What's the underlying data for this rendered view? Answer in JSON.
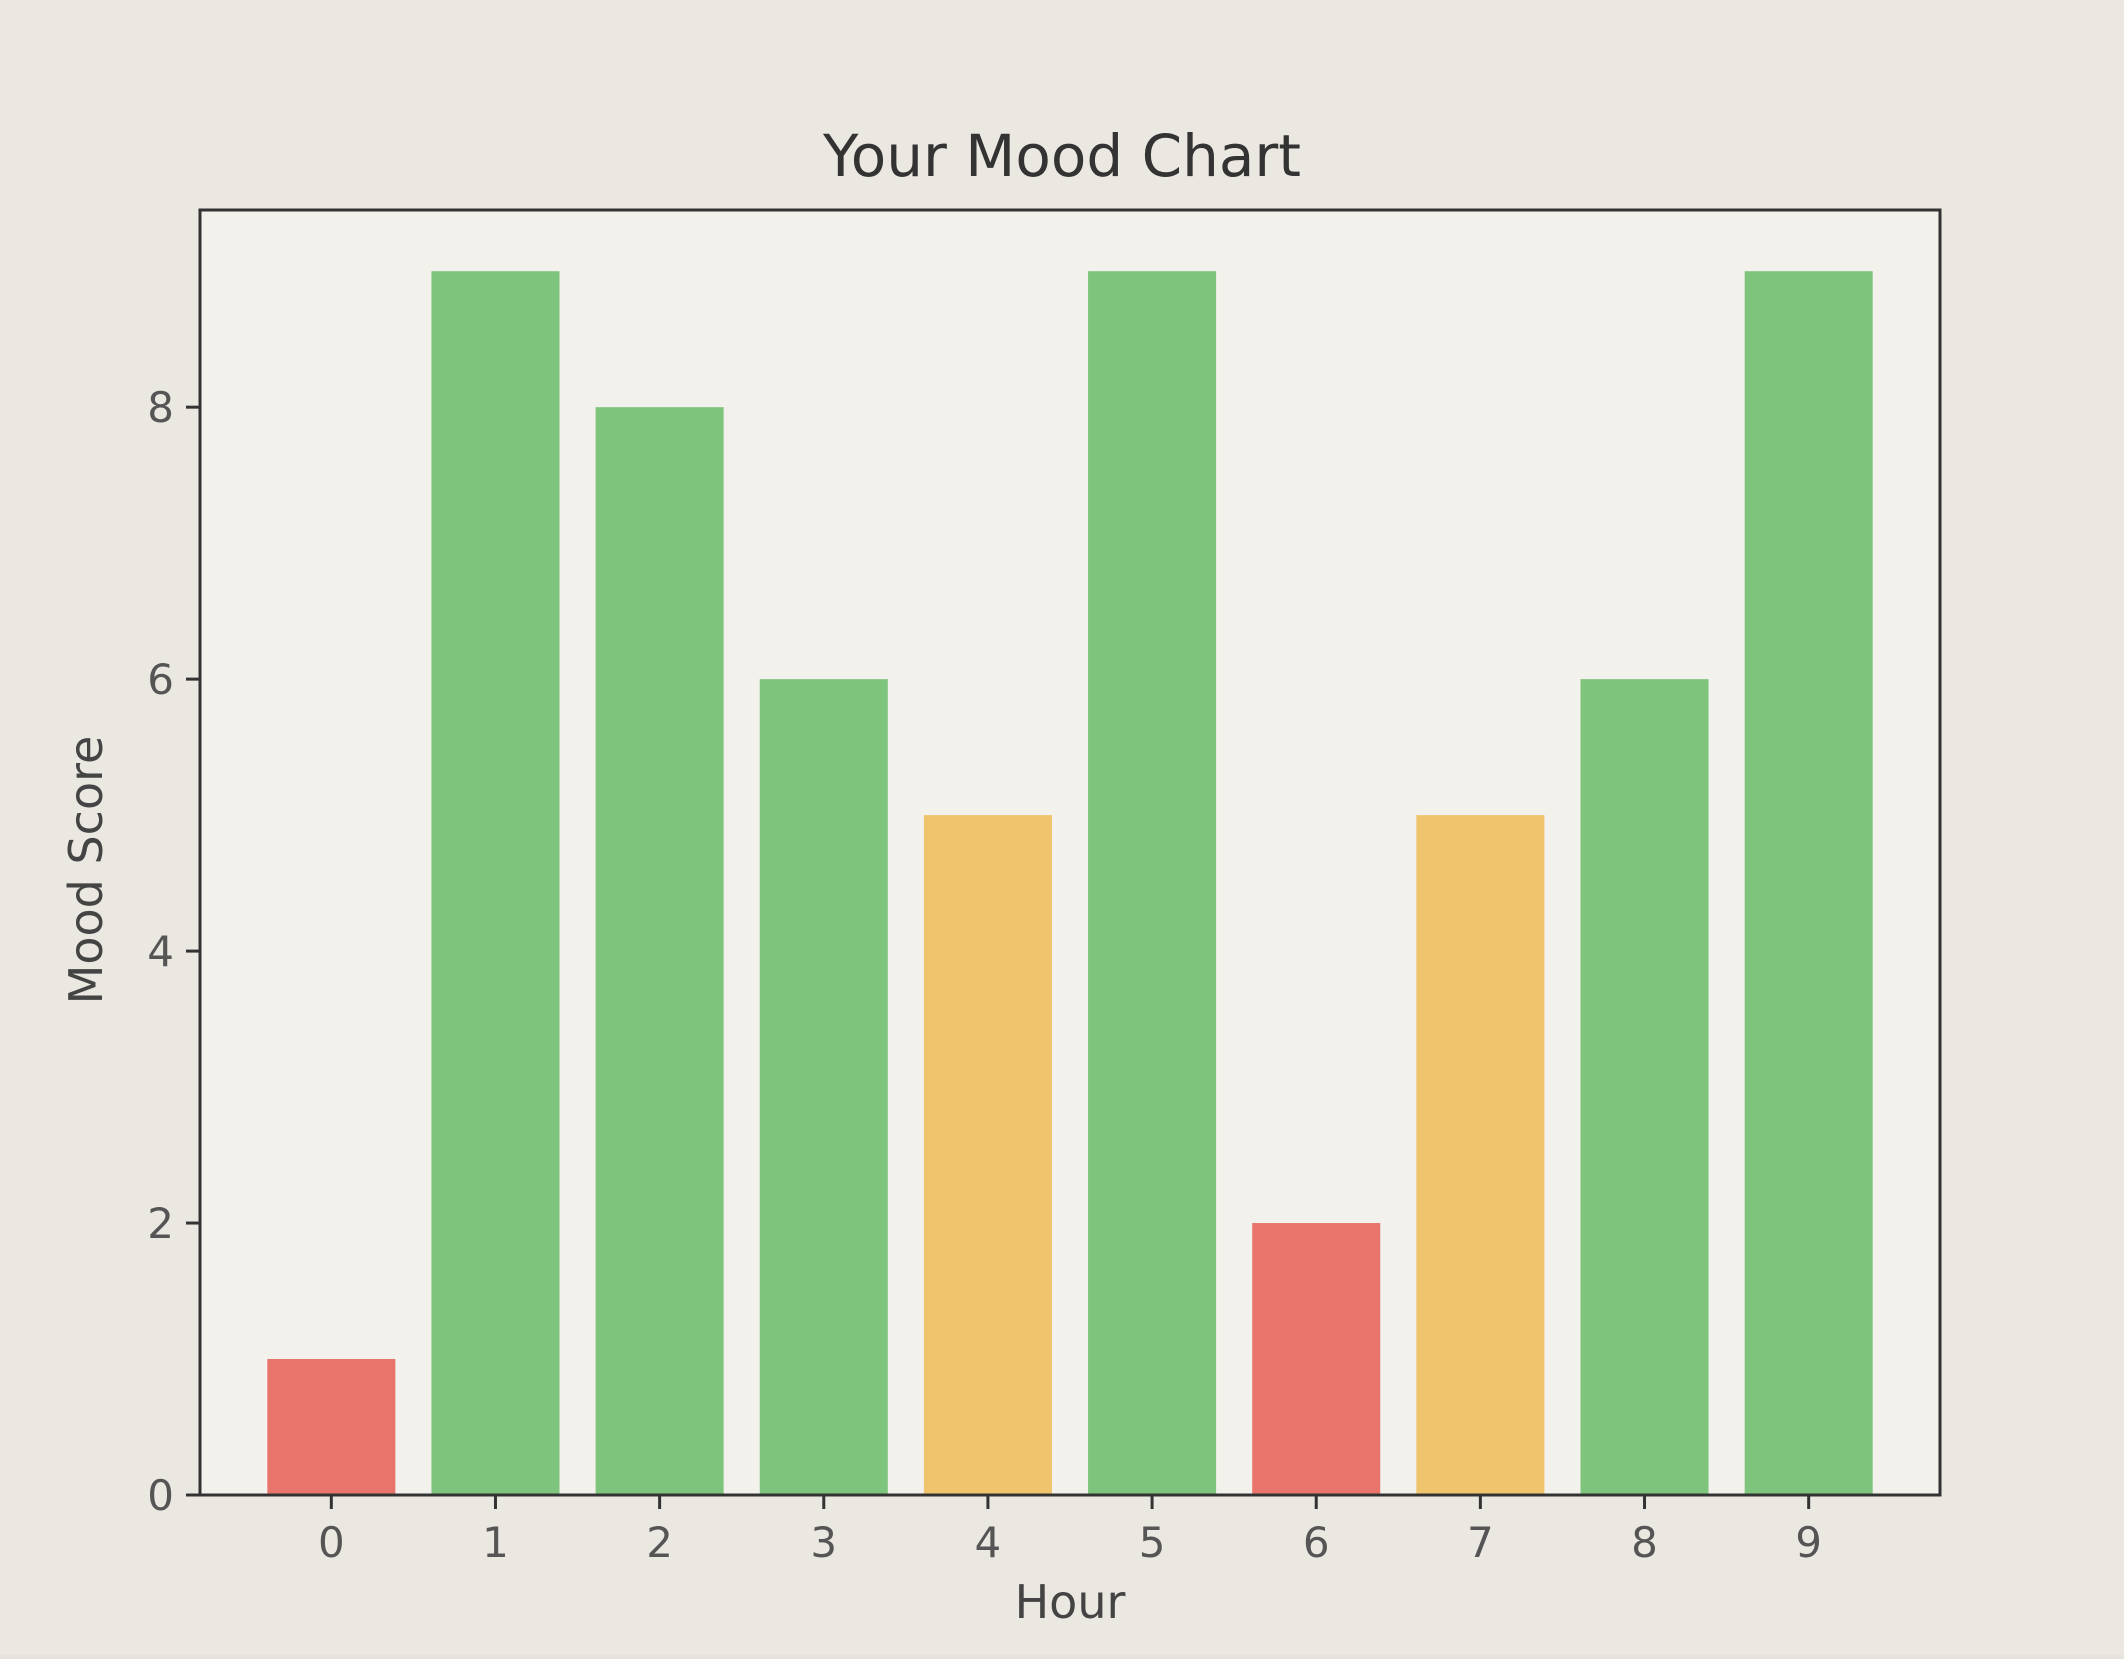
{
  "chart_data": {
    "type": "bar",
    "title": "Your Mood Chart",
    "xlabel": "Hour",
    "ylabel": "Mood Score",
    "categories": [
      "0",
      "1",
      "2",
      "3",
      "4",
      "5",
      "6",
      "7",
      "8",
      "9"
    ],
    "values": [
      1,
      9,
      8,
      6,
      5,
      9,
      2,
      5,
      6,
      9
    ],
    "bar_colors": [
      "#e8746b",
      "#7fc47c",
      "#7fc47c",
      "#7fc47c",
      "#f0c36d",
      "#7fc47c",
      "#e8746b",
      "#f0c36d",
      "#7fc47c",
      "#7fc47c"
    ],
    "ylim": [
      0,
      9.45
    ],
    "yticks": [
      0,
      2,
      4,
      6,
      8
    ],
    "grid": false,
    "legend": false
  }
}
